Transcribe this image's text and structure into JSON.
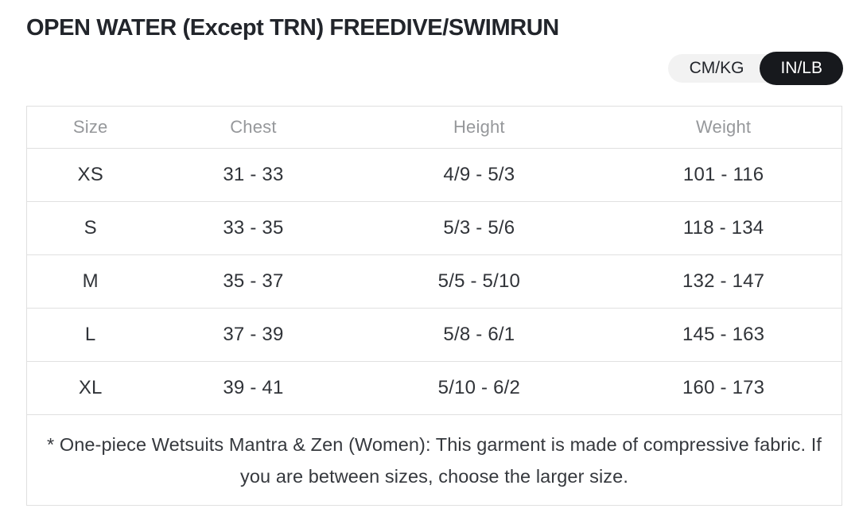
{
  "header": {
    "title": "OPEN WATER (Except TRN) FREEDIVE/SWIMRUN"
  },
  "unit_toggle": {
    "options": [
      {
        "label": "CM/KG",
        "selected": false
      },
      {
        "label": "IN/LB",
        "selected": true
      }
    ],
    "selected_value": "IN/LB"
  },
  "size_chart": {
    "columns": [
      "Size",
      "Chest",
      "Height",
      "Weight"
    ],
    "rows": [
      {
        "size": "XS",
        "chest": "31 - 33",
        "height": "4/9 - 5/3",
        "weight": "101 - 116"
      },
      {
        "size": "S",
        "chest": "33 - 35",
        "height": "5/3 - 5/6",
        "weight": "118 - 134"
      },
      {
        "size": "M",
        "chest": "35 - 37",
        "height": "5/5 - 5/10",
        "weight": "132 - 147"
      },
      {
        "size": "L",
        "chest": "37 - 39",
        "height": "5/8 - 6/1",
        "weight": "145 - 163"
      },
      {
        "size": "XL",
        "chest": "39 - 41",
        "height": "5/10 - 6/2",
        "weight": "160 - 173"
      }
    ],
    "footnote": "* One-piece Wetsuits Mantra & Zen (Women): This garment is made of compressive fabric. If you are between sizes, choose the larger size."
  },
  "colors": {
    "title_text": "#22252b",
    "body_text": "#303338",
    "header_text": "#96989b",
    "table_border": "#e0e0e0",
    "toggle_track_bg": "#f2f2f2",
    "toggle_selected_bg": "#17191d",
    "toggle_selected_text": "#ffffff"
  }
}
